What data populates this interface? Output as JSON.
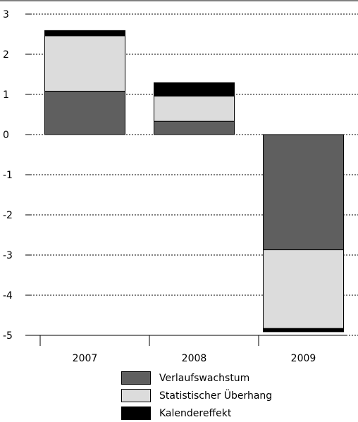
{
  "chart_data": {
    "type": "bar",
    "stacked": true,
    "categories": [
      "2007",
      "2008",
      "2009"
    ],
    "series": [
      {
        "name": "Verlaufswachstum",
        "values": [
          1.08,
          0.33,
          -2.87
        ],
        "color": "#5f5f5f"
      },
      {
        "name": "Statistischer Überhang",
        "values": [
          1.38,
          0.63,
          -1.96
        ],
        "color": "#dcdcdc"
      },
      {
        "name": "Kalendereffekt",
        "values": [
          0.13,
          0.33,
          -0.08
        ],
        "color": "#000000"
      }
    ],
    "yticks": [
      "3",
      "2",
      "1",
      "0",
      "-1",
      "-2",
      "-3",
      "-4",
      "-5"
    ],
    "ylim": [
      -5,
      3
    ],
    "grid": true,
    "legend_position": "bottom"
  }
}
